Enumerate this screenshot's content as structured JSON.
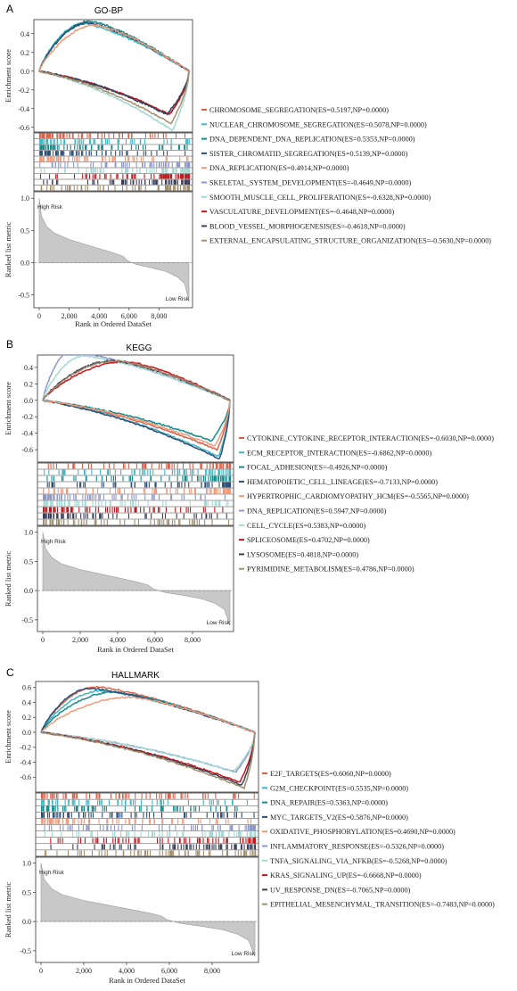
{
  "chart_data": [
    {
      "type": "line",
      "panel_label": "A",
      "title": "GO-BP",
      "ylabel_top": "Enrichment score",
      "ylabel_bottom": "Ranked list metric",
      "xlabel": "Rank in Ordered DataSet",
      "xticks": [
        "0",
        "2,000",
        "4,000",
        "6,000",
        "8,000"
      ],
      "xtick_values": [
        0,
        2000,
        4000,
        6000,
        8000
      ],
      "xlim": [
        0,
        10000
      ],
      "es_yticks": [
        "0.4",
        "0.2",
        "0.0",
        "-0.2",
        "-0.4",
        "-0.6"
      ],
      "es_ytick_values": [
        0.4,
        0.2,
        0.0,
        -0.2,
        -0.4,
        -0.6
      ],
      "es_ylim": [
        -0.65,
        0.55
      ],
      "metric_yticks": [
        "1.0",
        "0.5",
        "0.0",
        "-0.5"
      ],
      "metric_ytick_values": [
        1.0,
        0.5,
        0.0,
        -0.5
      ],
      "metric_ylim": [
        -0.7,
        1.1
      ],
      "high_label": "High Risk",
      "low_label": "Low Risk",
      "metric_profile": {
        "x": [
          0,
          150,
          500,
          1000,
          2000,
          3000,
          4000,
          5000,
          5600,
          5900,
          6500,
          7500,
          8500,
          9200,
          9700,
          10000
        ],
        "y": [
          1.0,
          0.72,
          0.56,
          0.46,
          0.36,
          0.29,
          0.22,
          0.15,
          0.1,
          0.03,
          -0.03,
          -0.08,
          -0.14,
          -0.22,
          -0.32,
          -0.6
        ]
      },
      "series": [
        {
          "name": "CHROMOSOME_SEGREGATION(ES=0.5197,NP=0.0000)",
          "color": "#d9614b",
          "es": 0.5197,
          "peak_at": 3200
        },
        {
          "name": "NUCLEAR_CHROMOSOME_SEGREGATION(ES=0.5078,NP=0.0000)",
          "color": "#3fb8c4",
          "es": 0.5078,
          "peak_at": 3000
        },
        {
          "name": "DNA_DEPENDENT_DNA_REPLICATION(ES=0.5353,NP=0.0000)",
          "color": "#158c8c",
          "es": 0.5353,
          "peak_at": 3400
        },
        {
          "name": "SISTER_CHROMATID_SEGREGATION(ES=0.5139,NP=0.0000)",
          "color": "#2c4f7c",
          "es": 0.5139,
          "peak_at": 3300
        },
        {
          "name": "DNA_REPLICATION(ES=0.4914,NP=0.0000)",
          "color": "#ef9a7a",
          "es": 0.4914,
          "peak_at": 3800
        },
        {
          "name": "SKELETAL_SYSTEM_DEVELOPMENT(ES=-0.4649,NP=0.0000)",
          "color": "#8e98c8",
          "es": -0.4649,
          "peak_at": 8600
        },
        {
          "name": "SMOOTH_MUSCLE_CELL_PROLIFERATION(ES=-0.6328,NP=0.0000)",
          "color": "#a4d8d4",
          "es": -0.6328,
          "peak_at": 8900
        },
        {
          "name": "VASCULATURE_DEVELOPMENT(ES=-0.4648,NP=0.0000)",
          "color": "#c4161c",
          "es": -0.4648,
          "peak_at": 8700
        },
        {
          "name": "BLOOD_VESSEL_MORPHOGENESIS(ES=-0.4618,NP=0.0000)",
          "color": "#3a3f58",
          "es": -0.4618,
          "peak_at": 8500
        },
        {
          "name": "EXTERNAL_ENCAPSULATING_STRUCTURE_ORGANIZATION(ES=-0.5630,NP=0.0000)",
          "color": "#a38f6e",
          "es": -0.563,
          "peak_at": 8800
        }
      ]
    },
    {
      "type": "line",
      "panel_label": "B",
      "title": "KEGG",
      "ylabel_top": "Enrichment score",
      "ylabel_bottom": "Ranked list metric",
      "xlabel": "Rank in Ordered DataSet",
      "xticks": [
        "0",
        "2,000",
        "4,000",
        "6,000",
        "8,000"
      ],
      "xtick_values": [
        0,
        2000,
        4000,
        6000,
        8000
      ],
      "xlim": [
        0,
        10000
      ],
      "es_yticks": [
        "0.4",
        "0.2",
        "0.0",
        "-0.2",
        "-0.4",
        "-0.6"
      ],
      "es_ytick_values": [
        0.4,
        0.2,
        0.0,
        -0.2,
        -0.4,
        -0.6
      ],
      "es_ylim": [
        -0.75,
        0.55
      ],
      "metric_yticks": [
        "1.0",
        "0.5",
        "0.0",
        "-0.5"
      ],
      "metric_ytick_values": [
        1.0,
        0.5,
        0.0,
        -0.5
      ],
      "metric_ylim": [
        -0.7,
        1.1
      ],
      "high_label": "High Risk",
      "low_label": "Low Risk",
      "metric_profile": {
        "x": [
          0,
          150,
          500,
          1000,
          2000,
          3000,
          4000,
          5000,
          5600,
          5900,
          6500,
          7500,
          8500,
          9200,
          9700,
          10000
        ],
        "y": [
          1.0,
          0.72,
          0.56,
          0.46,
          0.36,
          0.29,
          0.22,
          0.15,
          0.1,
          0.03,
          -0.03,
          -0.08,
          -0.14,
          -0.22,
          -0.32,
          -0.6
        ]
      },
      "series": [
        {
          "name": "CYTOKINE_CYTOKINE_RECEPTOR_INTERACTION(ES=-0.6030,NP=0.0000)",
          "color": "#d9614b",
          "es": -0.603,
          "peak_at": 9300
        },
        {
          "name": "ECM_RECEPTOR_INTERACTION(ES=-0.6862,NP=0.0000)",
          "color": "#3fb8c4",
          "es": -0.6862,
          "peak_at": 9400
        },
        {
          "name": "FOCAL_ADHESION(ES=-0.4926,NP=0.0000)",
          "color": "#158c8c",
          "es": -0.4926,
          "peak_at": 9000
        },
        {
          "name": "HEMATOPOIETIC_CELL_LINEAGE(ES=-0.7133,NP=0.0000)",
          "color": "#2c4f7c",
          "es": -0.7133,
          "peak_at": 9450
        },
        {
          "name": "HYPERTROPHIC_CARDIOMYOPATHY_HCM(ES=-0.5565,NP=0.0000)",
          "color": "#ef9a7a",
          "es": -0.5565,
          "peak_at": 9200
        },
        {
          "name": "DNA_REPLICATION(ES=0.5947,NP=0.0000)",
          "color": "#8e98c8",
          "es": 0.5947,
          "peak_at": 1500
        },
        {
          "name": "CELL_CYCLE(ES=0.5383,NP=0.0000)",
          "color": "#a4d8d4",
          "es": 0.5383,
          "peak_at": 2200
        },
        {
          "name": "SPLICEOSOME(ES=0.4702,NP=0.0000)",
          "color": "#c4161c",
          "es": 0.4702,
          "peak_at": 4500
        },
        {
          "name": "LYSOSOME(ES=0.4818,NP=0.0000)",
          "color": "#3a3f58",
          "es": 0.4818,
          "peak_at": 3800
        },
        {
          "name": "PYRIMIDINE_METABOLISM(ES=0.4786,NP=0.0000)",
          "color": "#a38f6e",
          "es": 0.4786,
          "peak_at": 4000
        }
      ]
    },
    {
      "type": "line",
      "panel_label": "C",
      "title": "HALLMARK",
      "ylabel_top": "Enrichment score",
      "ylabel_bottom": "Ranked list metric",
      "xlabel": "Rank in Ordered DataSet",
      "xticks": [
        "0",
        "2,000",
        "4,000",
        "6,000",
        "8,000"
      ],
      "xtick_values": [
        0,
        2000,
        4000,
        6000,
        8000
      ],
      "xlim": [
        0,
        10000
      ],
      "es_yticks": [
        "0.6",
        "0.4",
        "0.2",
        "0.0",
        "-0.2",
        "-0.4",
        "-0.6"
      ],
      "es_ytick_values": [
        0.6,
        0.4,
        0.2,
        0.0,
        -0.2,
        -0.4,
        -0.6
      ],
      "es_ylim": [
        -0.8,
        0.68
      ],
      "metric_yticks": [
        "1.0",
        "0.5",
        "0.0",
        "-0.5"
      ],
      "metric_ytick_values": [
        1.0,
        0.5,
        0.0,
        -0.5
      ],
      "metric_ylim": [
        -0.7,
        1.1
      ],
      "high_label": "High Risk",
      "low_label": "Low Risk",
      "metric_profile": {
        "x": [
          0,
          150,
          500,
          1000,
          2000,
          3000,
          4000,
          5000,
          5600,
          5900,
          6500,
          7500,
          8500,
          9200,
          9700,
          10000
        ],
        "y": [
          1.0,
          0.72,
          0.56,
          0.46,
          0.36,
          0.29,
          0.22,
          0.15,
          0.1,
          0.03,
          -0.03,
          -0.08,
          -0.14,
          -0.22,
          -0.32,
          -0.6
        ]
      },
      "series": [
        {
          "name": "E2F_TARGETS(ES=0.6060,NP=0.0000)",
          "color": "#d9614b",
          "es": 0.606,
          "peak_at": 2600
        },
        {
          "name": "G2M_CHECKPOINT(ES=0.5535,NP=0.0000)",
          "color": "#3fb8c4",
          "es": 0.5535,
          "peak_at": 2800
        },
        {
          "name": "DNA_REPAIR(ES=0.5363,NP=0.0000)",
          "color": "#158c8c",
          "es": 0.5363,
          "peak_at": 3400
        },
        {
          "name": "MYC_TARGETS_V2(ES=0.5876,NP=0.0000)",
          "color": "#2c4f7c",
          "es": 0.5876,
          "peak_at": 2300
        },
        {
          "name": "OXIDATIVE_PHOSPHORYLATION(ES=0.4690,NP=0.0000)",
          "color": "#ef9a7a",
          "es": 0.469,
          "peak_at": 4200
        },
        {
          "name": "INFLAMMATORY_RESPONSE(ES=-0.5326,NP=0.0000)",
          "color": "#8e98c8",
          "es": -0.5326,
          "peak_at": 9100
        },
        {
          "name": "TNFA_SIGNALING_VIA_NFKB(ES=-0.5268,NP=0.0000)",
          "color": "#a4d8d4",
          "es": -0.5268,
          "peak_at": 9000
        },
        {
          "name": "KRAS_SIGNALING_UP(ES=-0.6668,NP=0.0000)",
          "color": "#c4161c",
          "es": -0.6668,
          "peak_at": 9300
        },
        {
          "name": "UV_RESPONSE_DN(ES=-0.7065,NP=0.0000)",
          "color": "#3a3f58",
          "es": -0.7065,
          "peak_at": 9400
        },
        {
          "name": "EPITHELIAL_MESENCHYMAL_TRANSITION(ES=-0.7483,NP=0.0000)",
          "color": "#a38f6e",
          "es": -0.7483,
          "peak_at": 9500
        }
      ]
    }
  ]
}
